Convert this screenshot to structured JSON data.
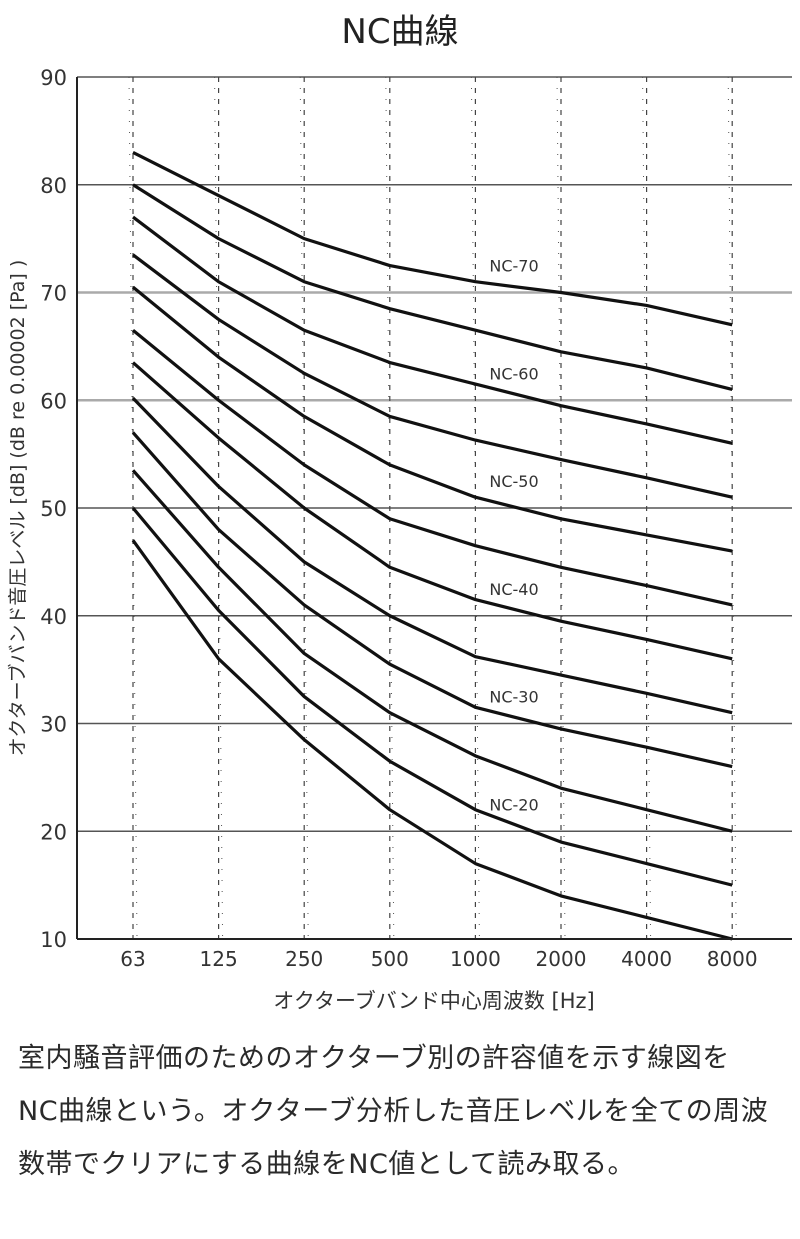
{
  "chart_data": {
    "type": "line",
    "title": "NC曲線",
    "xlabel": "オクターブバンド中心周波数 [Hz]",
    "ylabel": "オクターブバンド音圧レベル [dB] (dB re 0.00002 [Pa] )",
    "categories": [
      "63",
      "125",
      "250",
      "500",
      "1000",
      "2000",
      "4000",
      "8000"
    ],
    "ylim": [
      10,
      90
    ],
    "yticks": [
      10,
      20,
      30,
      40,
      50,
      60,
      70,
      80,
      90
    ],
    "grid": "horizontal every 10 dB; dashed vertical lines at each octave band",
    "series": [
      {
        "name": "NC-70",
        "values": [
          83,
          79,
          75,
          72.5,
          71,
          70,
          68.8,
          67
        ]
      },
      {
        "name": "",
        "values": [
          80,
          75,
          71,
          68.5,
          66.5,
          64.5,
          63,
          61
        ]
      },
      {
        "name": "NC-60",
        "values": [
          77,
          71,
          66.5,
          63.5,
          61.5,
          59.5,
          57.8,
          56
        ]
      },
      {
        "name": "",
        "values": [
          73.5,
          67.5,
          62.5,
          58.5,
          56.3,
          54.5,
          52.8,
          51
        ]
      },
      {
        "name": "NC-50",
        "values": [
          70.5,
          64,
          58.5,
          54,
          51,
          49,
          47.5,
          46
        ]
      },
      {
        "name": "",
        "values": [
          66.5,
          60,
          54,
          49,
          46.5,
          44.5,
          42.8,
          41
        ]
      },
      {
        "name": "NC-40",
        "values": [
          63.5,
          56.5,
          50,
          44.5,
          41.5,
          39.5,
          37.8,
          36
        ]
      },
      {
        "name": "",
        "values": [
          60.2,
          52,
          45,
          40,
          36.2,
          34.5,
          32.8,
          31
        ]
      },
      {
        "name": "NC-30",
        "values": [
          57,
          48,
          41,
          35.5,
          31.5,
          29.5,
          27.8,
          26
        ]
      },
      {
        "name": "",
        "values": [
          53.5,
          44.5,
          36.5,
          31,
          27,
          24,
          22,
          20
        ]
      },
      {
        "name": "NC-20",
        "values": [
          50,
          40.5,
          32.5,
          26.5,
          22,
          19,
          17,
          15
        ]
      },
      {
        "name": "",
        "values": [
          47,
          36,
          28.5,
          22,
          17,
          14,
          12,
          10
        ]
      }
    ],
    "annotations": [
      {
        "text": "NC-70",
        "x": "1000",
        "y": 72.5
      },
      {
        "text": "NC-60",
        "x": "1000",
        "y": 62.5
      },
      {
        "text": "NC-50",
        "x": "1000",
        "y": 52.5
      },
      {
        "text": "NC-40",
        "x": "1000",
        "y": 42.5
      },
      {
        "text": "NC-30",
        "x": "1000",
        "y": 32.5
      },
      {
        "text": "NC-20",
        "x": "1000",
        "y": 22.5
      }
    ]
  },
  "description": [
    "室内騒音評価のためのオクターブ別の許容値を示す線図を",
    "NC曲線という。オクターブ分析した音圧レベルを全ての周波",
    "数帯でクリアにする曲線をNC値として読み取る。"
  ]
}
